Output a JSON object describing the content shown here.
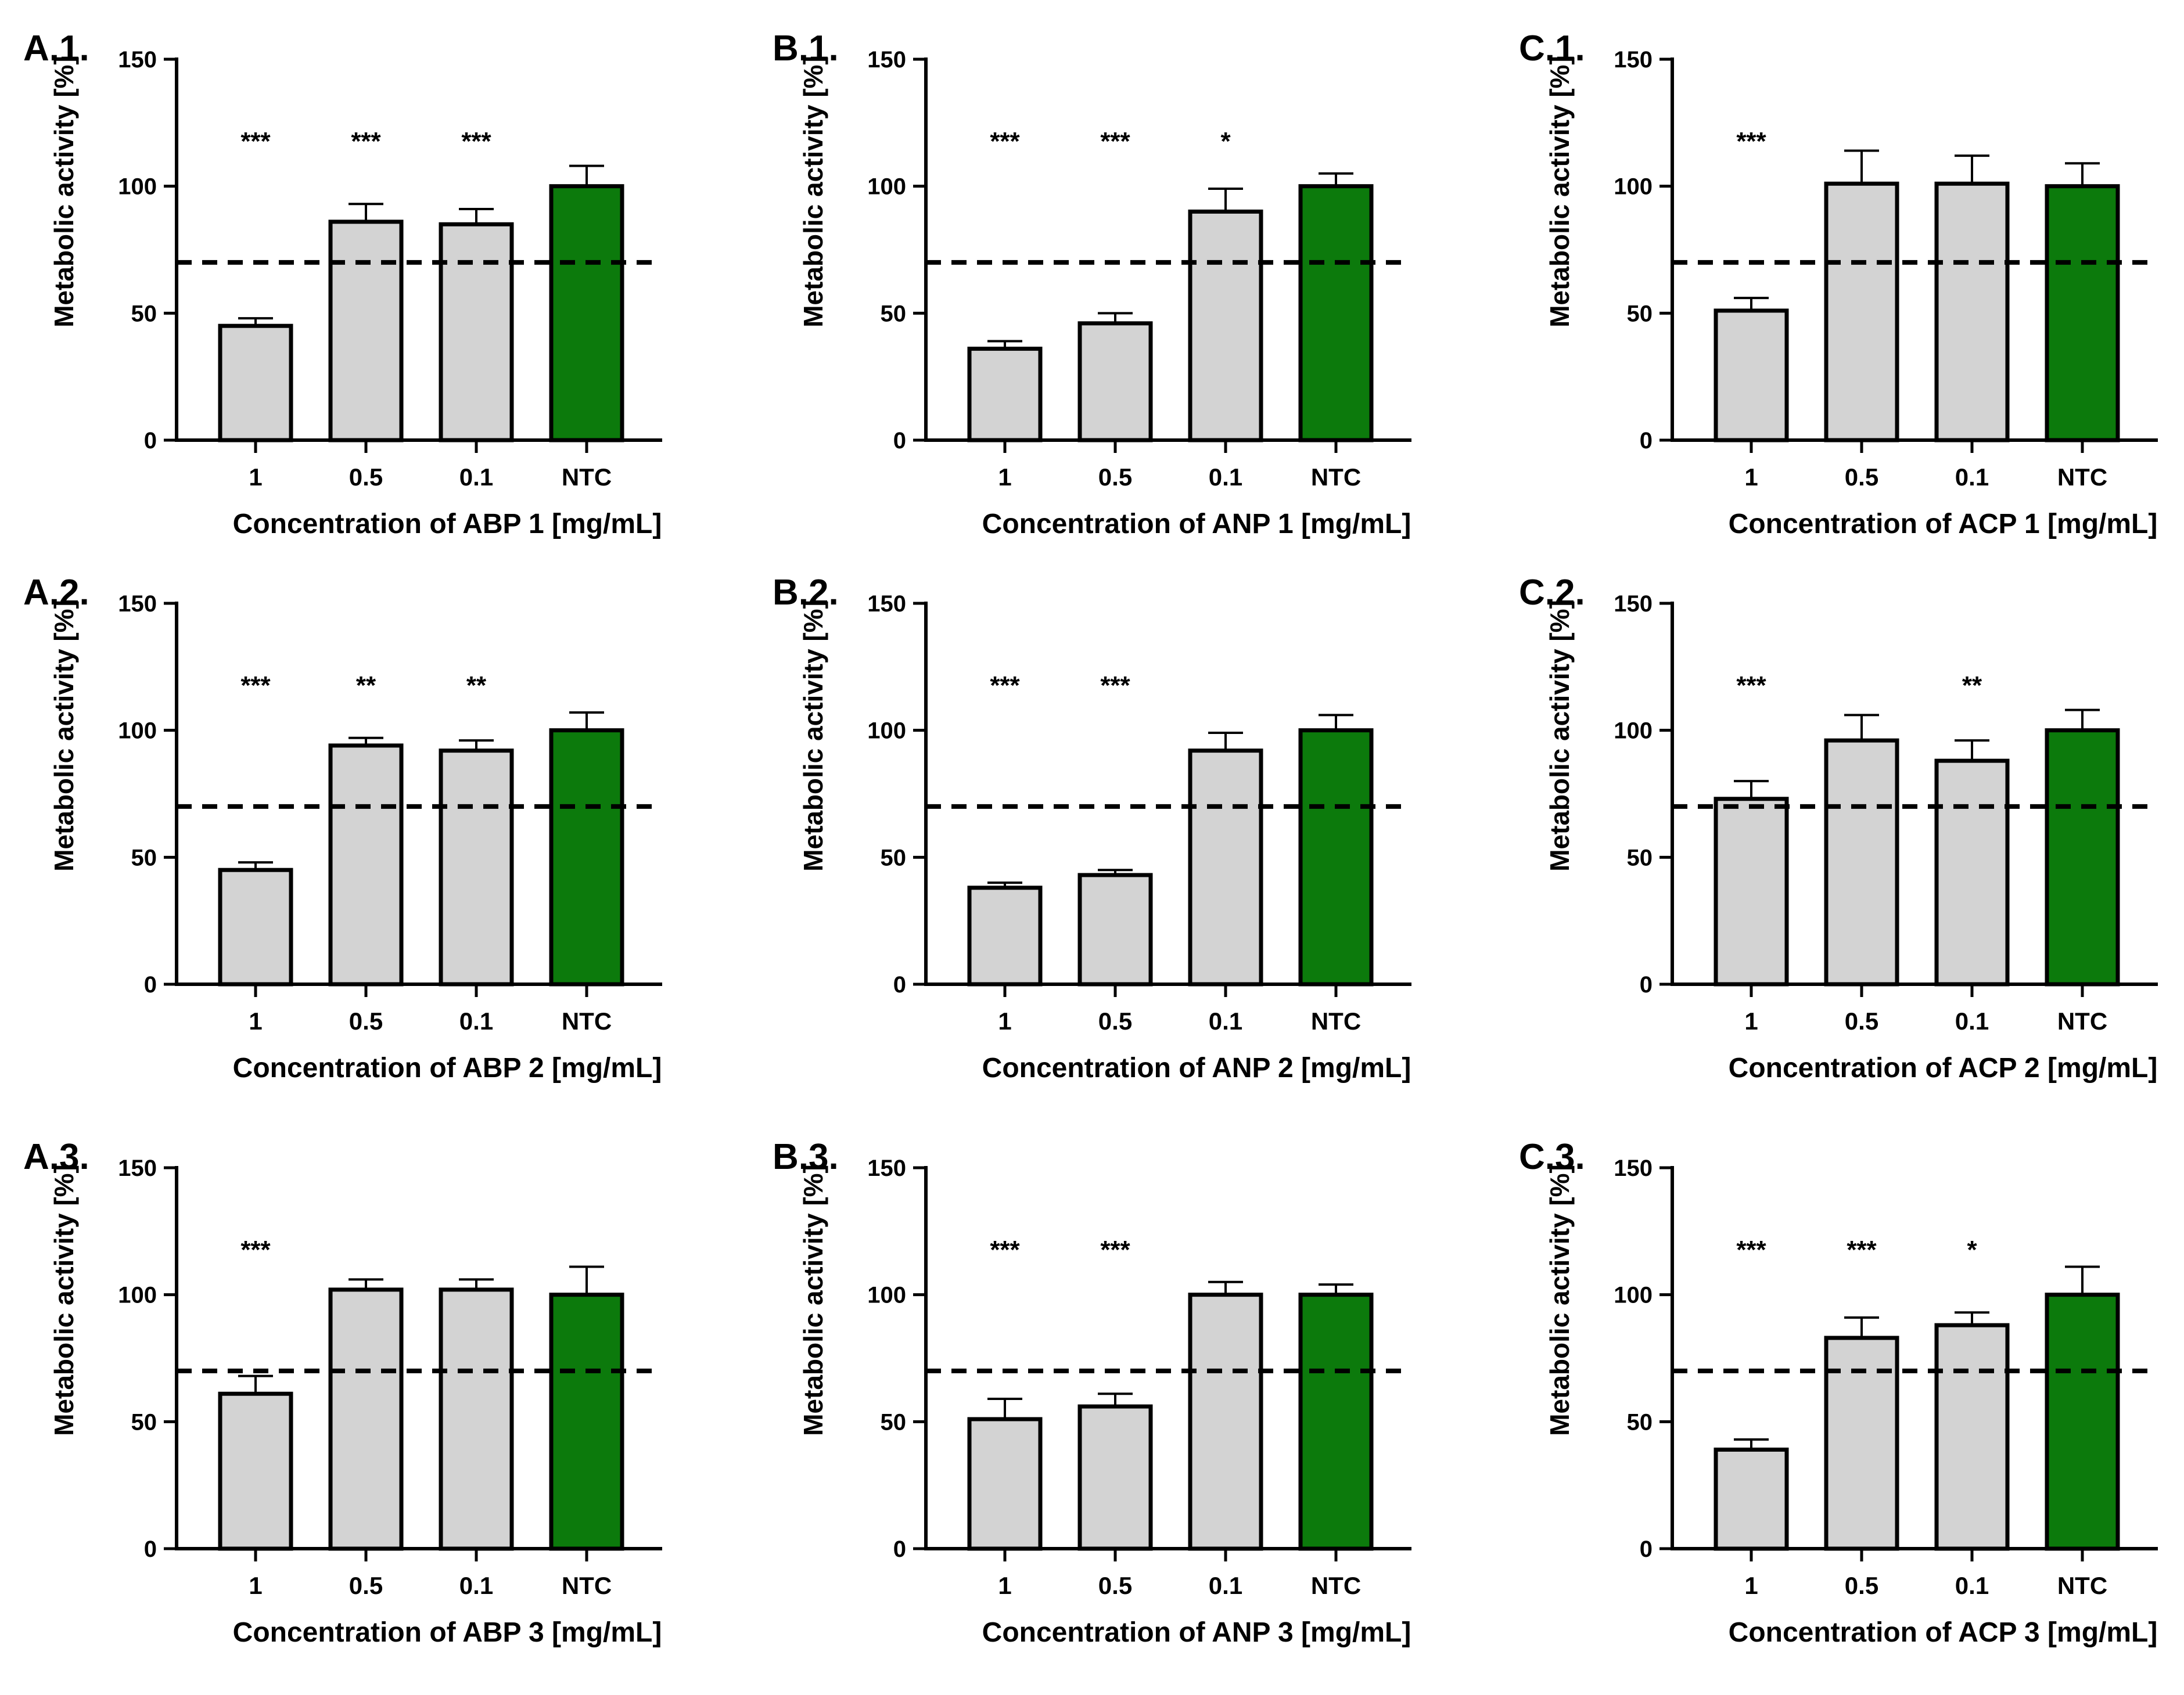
{
  "figure": {
    "y_axis_title": "Metabolic activity [%]",
    "threshold": 70,
    "colors": {
      "sample_bar": "#d3d3d3",
      "control_bar": "#0c7a0c",
      "outline": "#000000"
    }
  },
  "chart_data": [
    {
      "id": "A.1.",
      "type": "bar",
      "title": "",
      "xlabel": "Concentration of ABP 1 [mg/mL]",
      "ylabel": "Metabolic activity [%]",
      "ylim": [
        0,
        150
      ],
      "yticks": [
        0,
        50,
        100,
        150
      ],
      "categories": [
        "1",
        "0.5",
        "0.1",
        "NTC"
      ],
      "values": [
        45,
        86,
        85,
        100
      ],
      "errors": [
        3,
        7,
        6,
        8
      ],
      "significance": [
        "***",
        "***",
        "***",
        ""
      ],
      "threshold": 70
    },
    {
      "id": "B.1.",
      "type": "bar",
      "title": "",
      "xlabel": "Concentration of ANP 1 [mg/mL]",
      "ylabel": "Metabolic activity [%]",
      "ylim": [
        0,
        150
      ],
      "yticks": [
        0,
        50,
        100,
        150
      ],
      "categories": [
        "1",
        "0.5",
        "0.1",
        "NTC"
      ],
      "values": [
        36,
        46,
        90,
        100
      ],
      "errors": [
        3,
        4,
        9,
        5
      ],
      "significance": [
        "***",
        "***",
        "*",
        ""
      ],
      "threshold": 70
    },
    {
      "id": "C.1.",
      "type": "bar",
      "title": "",
      "xlabel": "Concentration of ACP 1 [mg/mL]",
      "ylabel": "Metabolic activity [%]",
      "ylim": [
        0,
        150
      ],
      "yticks": [
        0,
        50,
        100,
        150
      ],
      "categories": [
        "1",
        "0.5",
        "0.1",
        "NTC"
      ],
      "values": [
        51,
        101,
        101,
        100
      ],
      "errors": [
        5,
        13,
        11,
        9
      ],
      "significance": [
        "***",
        "",
        "",
        ""
      ],
      "threshold": 70
    },
    {
      "id": "A.2.",
      "type": "bar",
      "title": "",
      "xlabel": "Concentration of ABP 2 [mg/mL]",
      "ylabel": "Metabolic activity [%]",
      "ylim": [
        0,
        150
      ],
      "yticks": [
        0,
        50,
        100,
        150
      ],
      "categories": [
        "1",
        "0.5",
        "0.1",
        "NTC"
      ],
      "values": [
        45,
        94,
        92,
        100
      ],
      "errors": [
        3,
        3,
        4,
        7
      ],
      "significance": [
        "***",
        "**",
        "**",
        ""
      ],
      "threshold": 70
    },
    {
      "id": "B.2.",
      "type": "bar",
      "title": "",
      "xlabel": "Concentration of ANP 2 [mg/mL]",
      "ylabel": "Metabolic activity [%]",
      "ylim": [
        0,
        150
      ],
      "yticks": [
        0,
        50,
        100,
        150
      ],
      "categories": [
        "1",
        "0.5",
        "0.1",
        "NTC"
      ],
      "values": [
        38,
        43,
        92,
        100
      ],
      "errors": [
        2,
        2,
        7,
        6
      ],
      "significance": [
        "***",
        "***",
        "",
        ""
      ],
      "threshold": 70
    },
    {
      "id": "C.2.",
      "type": "bar",
      "title": "",
      "xlabel": "Concentration of ACP 2 [mg/mL]",
      "ylabel": "Metabolic activity [%]",
      "ylim": [
        0,
        150
      ],
      "yticks": [
        0,
        50,
        100,
        150
      ],
      "categories": [
        "1",
        "0.5",
        "0.1",
        "NTC"
      ],
      "values": [
        73,
        96,
        88,
        100
      ],
      "errors": [
        7,
        10,
        8,
        8
      ],
      "significance": [
        "***",
        "",
        "**",
        ""
      ],
      "threshold": 70
    },
    {
      "id": "A.3.",
      "type": "bar",
      "title": "",
      "xlabel": "Concentration of ABP 3 [mg/mL]",
      "ylabel": "Metabolic activity [%]",
      "ylim": [
        0,
        150
      ],
      "yticks": [
        0,
        50,
        100,
        150
      ],
      "categories": [
        "1",
        "0.5",
        "0.1",
        "NTC"
      ],
      "values": [
        61,
        102,
        102,
        100
      ],
      "errors": [
        7,
        4,
        4,
        11
      ],
      "significance": [
        "***",
        "",
        "",
        ""
      ],
      "threshold": 70
    },
    {
      "id": "B.3.",
      "type": "bar",
      "title": "",
      "xlabel": "Concentration of ANP 3 [mg/mL]",
      "ylabel": "Metabolic activity [%]",
      "ylim": [
        0,
        150
      ],
      "yticks": [
        0,
        50,
        100,
        150
      ],
      "categories": [
        "1",
        "0.5",
        "0.1",
        "NTC"
      ],
      "values": [
        51,
        56,
        100,
        100
      ],
      "errors": [
        8,
        5,
        5,
        4
      ],
      "significance": [
        "***",
        "***",
        "",
        ""
      ],
      "threshold": 70
    },
    {
      "id": "C.3.",
      "type": "bar",
      "title": "",
      "xlabel": "Concentration of ACP 3 [mg/mL]",
      "ylabel": "Metabolic activity [%]",
      "ylim": [
        0,
        150
      ],
      "yticks": [
        0,
        50,
        100,
        150
      ],
      "categories": [
        "1",
        "0.5",
        "0.1",
        "NTC"
      ],
      "values": [
        39,
        83,
        88,
        100
      ],
      "errors": [
        4,
        8,
        5,
        11
      ],
      "significance": [
        "***",
        "***",
        "*",
        ""
      ],
      "threshold": 70
    }
  ]
}
